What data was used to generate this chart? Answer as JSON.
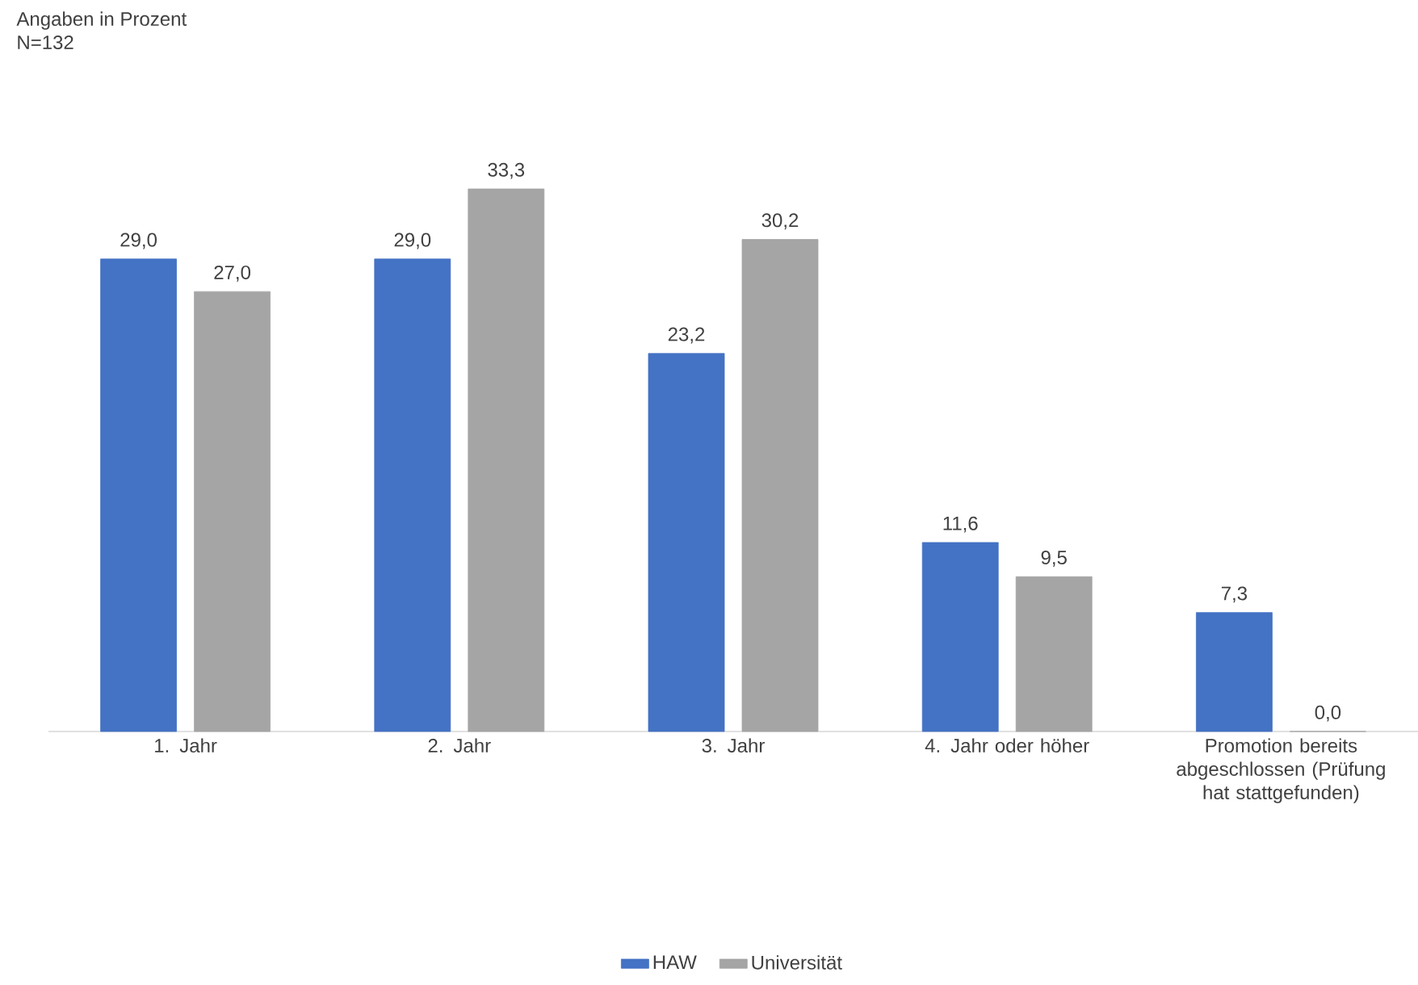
{
  "chart_data": {
    "type": "bar",
    "title": "Angaben in Prozent",
    "subtitle": "N=132",
    "categories": [
      "1. Jahr",
      "2. Jahr",
      "3. Jahr",
      "4. Jahr oder höher",
      "Promotion bereits abgeschlossen (Prüfung hat stattgefunden)"
    ],
    "series": [
      {
        "name": "HAW",
        "color": "#4472c4",
        "values": [
          29.0,
          29.0,
          23.2,
          11.6,
          7.3
        ],
        "value_labels": [
          "29,0",
          "29,0",
          "23,2",
          "11,6",
          "7,3"
        ]
      },
      {
        "name": "Universität",
        "color": "#a5a5a5",
        "values": [
          27.0,
          33.3,
          30.2,
          9.5,
          0.0
        ],
        "value_labels": [
          "27,0",
          "33,3",
          "30,2",
          "9,5",
          "0,0"
        ]
      }
    ],
    "legend": "bottom"
  }
}
